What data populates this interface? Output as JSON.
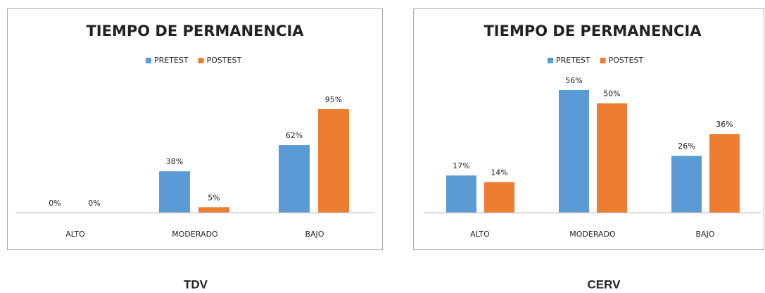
{
  "chart_data": [
    {
      "type": "bar",
      "title": "TIEMPO DE PERMANENCIA",
      "caption": "TDV",
      "categories": [
        "ALTO",
        "MODERADO",
        "BAJO"
      ],
      "series": [
        {
          "name": "PRETEST",
          "color": "#5b9bd5",
          "values": [
            0,
            38,
            62
          ],
          "value_labels": [
            "0%",
            "38%",
            "62%"
          ]
        },
        {
          "name": "POSTEST",
          "color": "#ed7d31",
          "values": [
            0,
            5,
            95
          ],
          "value_labels": [
            "0%",
            "5%",
            "95%"
          ]
        }
      ],
      "ylim": [
        0,
        100
      ]
    },
    {
      "type": "bar",
      "title": "TIEMPO DE PERMANENCIA",
      "caption": "CERV",
      "categories": [
        "ALTO",
        "MODERADO",
        "BAJO"
      ],
      "series": [
        {
          "name": "PRETEST",
          "color": "#5b9bd5",
          "values": [
            17,
            56,
            26
          ],
          "value_labels": [
            "17%",
            "56%",
            "26%"
          ]
        },
        {
          "name": "POSTEST",
          "color": "#ed7d31",
          "values": [
            14,
            50,
            36
          ],
          "value_labels": [
            "14%",
            "50%",
            "36%"
          ]
        }
      ],
      "ylim": [
        0,
        60
      ]
    }
  ]
}
